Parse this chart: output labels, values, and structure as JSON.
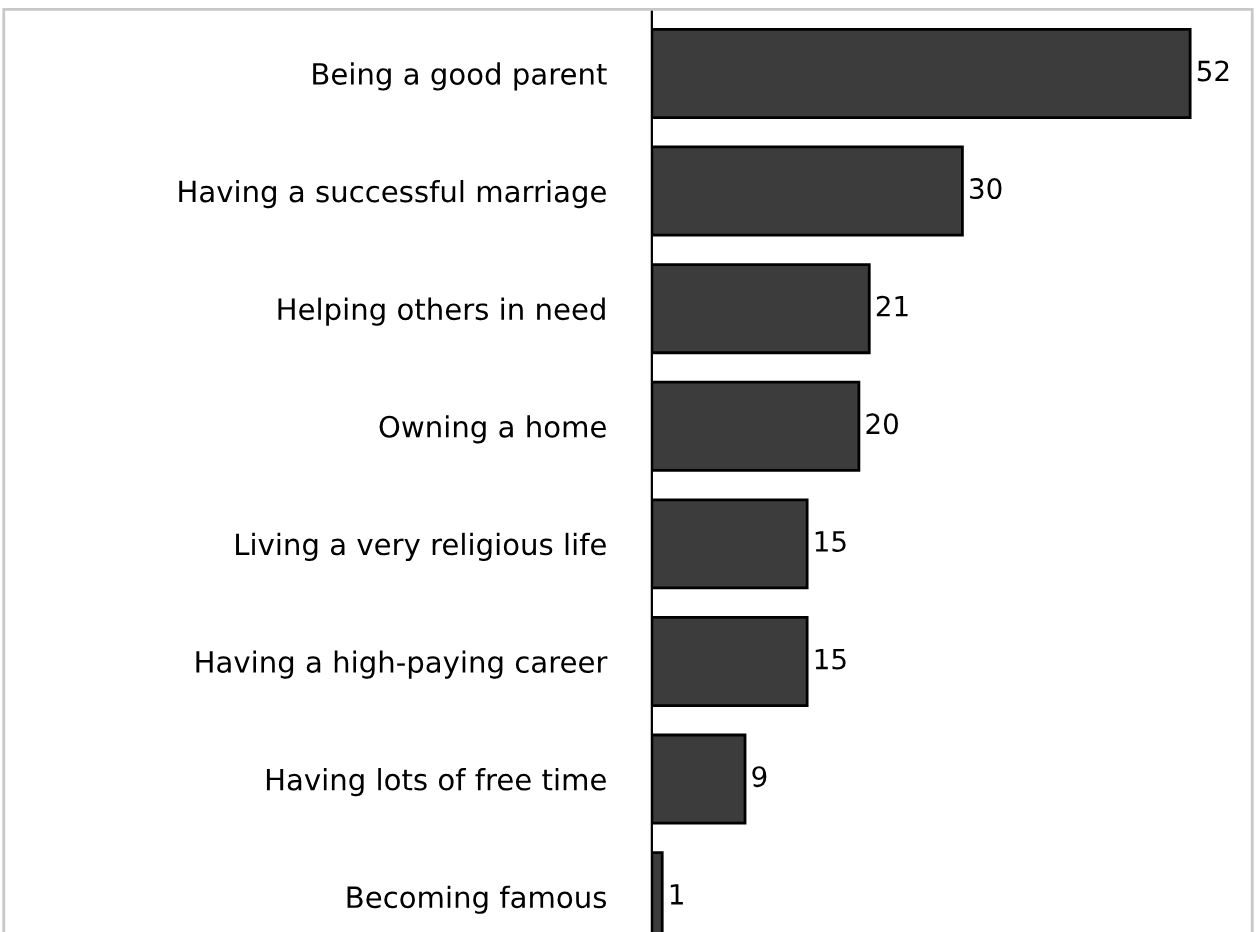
{
  "chart_data": {
    "type": "bar",
    "orientation": "horizontal",
    "categories": [
      "Being a good parent",
      "Having a successful marriage",
      "Helping others in need",
      "Owning a home",
      "Living a very religious life",
      "Having a high-paying career",
      "Having lots of free time",
      "Becoming famous"
    ],
    "values": [
      52,
      30,
      21,
      20,
      15,
      15,
      9,
      1
    ],
    "color": "#3c3c3c",
    "data_labels": true,
    "grid": false,
    "legend": false,
    "tick_labels": "y"
  }
}
